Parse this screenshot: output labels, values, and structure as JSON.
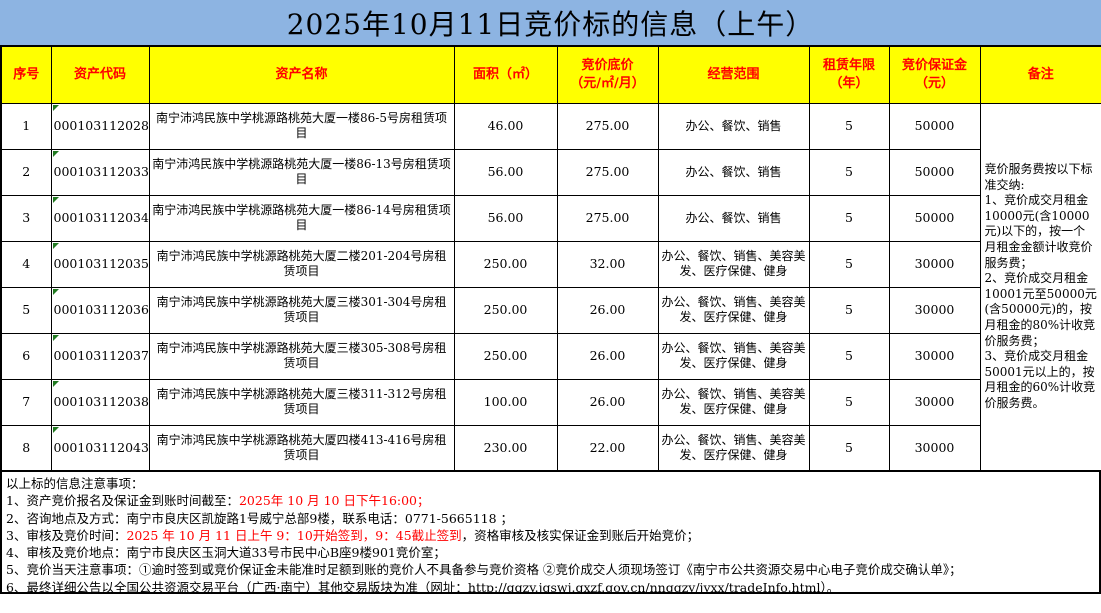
{
  "title": "2025年10月11日竞价标的信息（上午）",
  "colors": {
    "title_bg": "#8DB4E2",
    "header_bg": "#FFFF00",
    "header_text": "#FF0000",
    "highlight_red": "#FF0000",
    "cell_marker_green": "#217A21"
  },
  "table": {
    "headers": [
      {
        "key": "no",
        "label": "序号"
      },
      {
        "key": "code",
        "label": "资产代码"
      },
      {
        "key": "name",
        "label": "资产名称"
      },
      {
        "key": "area",
        "label": "面积（㎡）"
      },
      {
        "key": "price",
        "label": "竞价底价\n（元/㎡/月）"
      },
      {
        "key": "scope",
        "label": "经营范围"
      },
      {
        "key": "years",
        "label": "租赁年限\n（年）"
      },
      {
        "key": "deposit",
        "label": "竞价保证金\n（元）"
      },
      {
        "key": "remark",
        "label": "备注"
      }
    ],
    "rows": [
      {
        "no": "1",
        "code": "000103112028",
        "name": "南宁沛鸿民族中学桃源路桃苑大厦一楼86-5号房租赁项目",
        "area": "46.00",
        "price": "275.00",
        "scope": "办公、餐饮、销售",
        "years": "5",
        "deposit": "50000"
      },
      {
        "no": "2",
        "code": "000103112033",
        "name": "南宁沛鸿民族中学桃源路桃苑大厦一楼86-13号房租赁项目",
        "area": "56.00",
        "price": "275.00",
        "scope": "办公、餐饮、销售",
        "years": "5",
        "deposit": "50000"
      },
      {
        "no": "3",
        "code": "000103112034",
        "name": "南宁沛鸿民族中学桃源路桃苑大厦一楼86-14号房租赁项目",
        "area": "56.00",
        "price": "275.00",
        "scope": "办公、餐饮、销售",
        "years": "5",
        "deposit": "50000"
      },
      {
        "no": "4",
        "code": "000103112035",
        "name": "南宁沛鸿民族中学桃源路桃苑大厦二楼201-204号房租赁项目",
        "area": "250.00",
        "price": "32.00",
        "scope": "办公、餐饮、销售、美容美发、医疗保健、健身",
        "years": "5",
        "deposit": "30000"
      },
      {
        "no": "5",
        "code": "000103112036",
        "name": "南宁沛鸿民族中学桃源路桃苑大厦三楼301-304号房租赁项目",
        "area": "250.00",
        "price": "26.00",
        "scope": "办公、餐饮、销售、美容美发、医疗保健、健身",
        "years": "5",
        "deposit": "30000"
      },
      {
        "no": "6",
        "code": "000103112037",
        "name": "南宁沛鸿民族中学桃源路桃苑大厦三楼305-308号房租赁项目",
        "area": "250.00",
        "price": "26.00",
        "scope": "办公、餐饮、销售、美容美发、医疗保健、健身",
        "years": "5",
        "deposit": "30000"
      },
      {
        "no": "7",
        "code": "000103112038",
        "name": "南宁沛鸿民族中学桃源路桃苑大厦三楼311-312号房租赁项目",
        "area": "100.00",
        "price": "26.00",
        "scope": "办公、餐饮、销售、美容美发、医疗保健、健身",
        "years": "5",
        "deposit": "30000"
      },
      {
        "no": "8",
        "code": "000103112043",
        "name": "南宁沛鸿民族中学桃源路桃苑大厦四楼413-416号房租赁项目",
        "area": "230.00",
        "price": "22.00",
        "scope": "办公、餐饮、销售、美容美发、医疗保健、健身",
        "years": "5",
        "deposit": "30000"
      }
    ],
    "remark": "竞价服务费按以下标准交纳:\n1、竞价成交月租金10000元(含10000元)以下的，按一个月租金金额计收竞价服务费；\n2、竞价成交月租金10001元至50000元(含50000元)的，按月租金的80%计收竞价服务费；\n3、竞价成交月租金50001元以上的，按月租金的60%计收竞价服务费。"
  },
  "notes": {
    "heading": "以上标的信息注意事项：",
    "lines": [
      {
        "segments": [
          {
            "text": "1、资产竞价报名及保证金到账时间截至：",
            "red": false
          },
          {
            "text": "2025年 10 月 10 日下午16:00；",
            "red": true
          }
        ]
      },
      {
        "segments": [
          {
            "text": "2、咨询地点及方式：南宁市良庆区凯旋路1号威宁总部9楼，联系电话：0771-5665118 ；",
            "red": false
          }
        ]
      },
      {
        "segments": [
          {
            "text": "3、审核及竞价时间：",
            "red": false
          },
          {
            "text": "2025 年 10 月 11 日上午 9：10开始签到，9：45截止签到",
            "red": true
          },
          {
            "text": "，资格审核及核实保证金到账后开始竞价；",
            "red": false
          }
        ]
      },
      {
        "segments": [
          {
            "text": "4、审核及竞价地点：南宁市良庆区玉洞大道33号市民中心B座9楼901竞价室；",
            "red": false
          }
        ]
      },
      {
        "segments": [
          {
            "text": "5、竞价当天注意事项：①逾时签到或竞价保证金未能准时足额到账的竞价人不具备参与竞价资格 ②竞价成交人须现场签订《南宁市公共资源交易中心电子竞价成交确认单》；",
            "red": false
          }
        ]
      },
      {
        "segments": [
          {
            "text": "6、最终详细公告以全国公共资源交易平台（广西·南宁）其他交易版块为准（网址：http://ggzy.jgswj.gxzf.gov.cn/nnggzy/jyxx/tradeInfo.html）。",
            "red": false
          }
        ]
      }
    ]
  }
}
